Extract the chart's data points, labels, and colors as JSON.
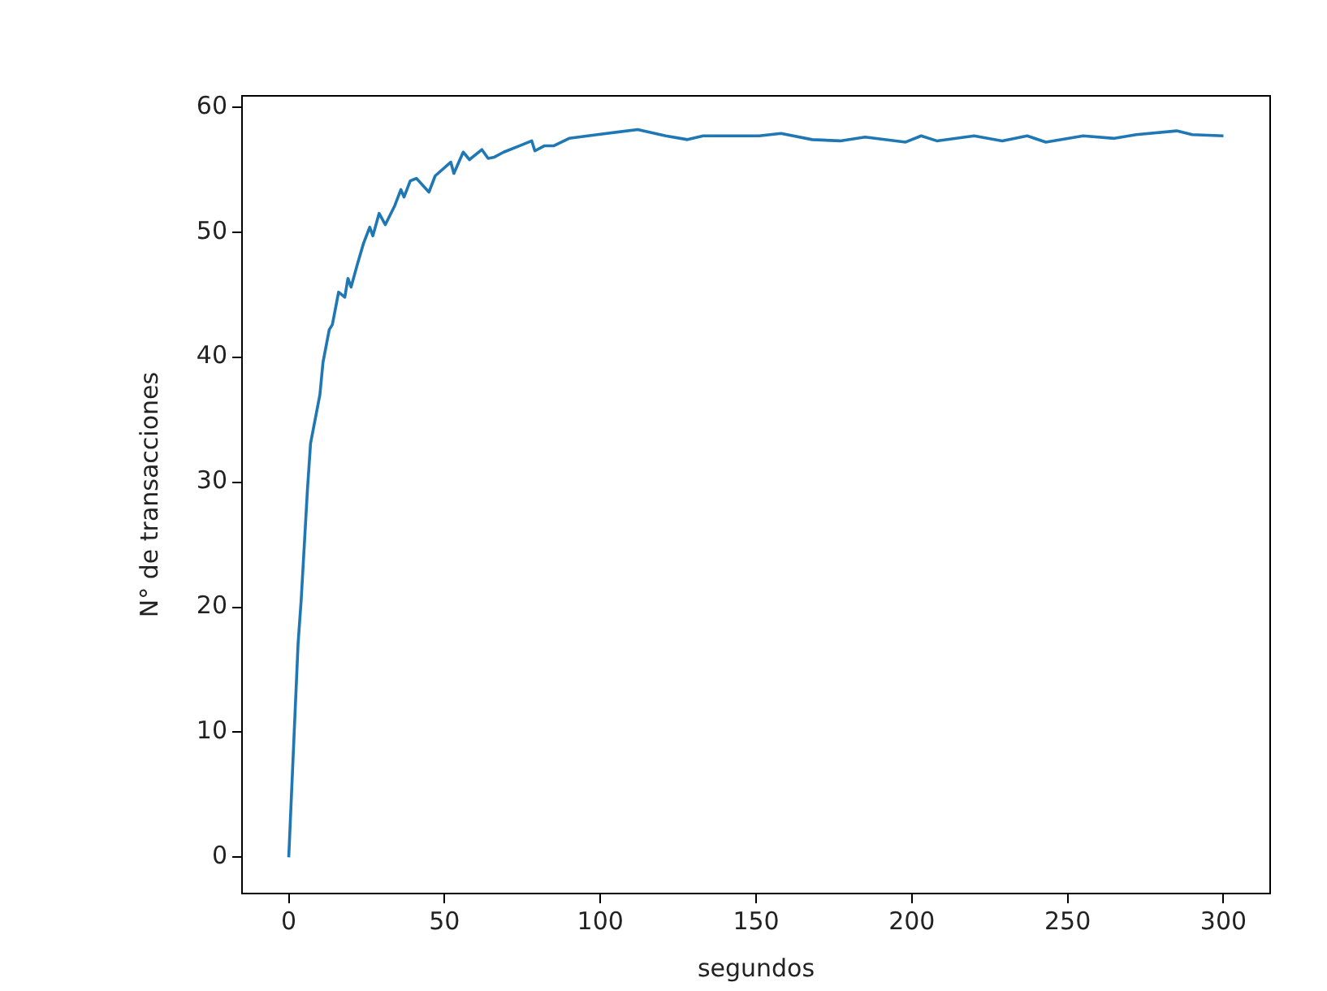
{
  "chart_data": {
    "type": "line",
    "xlabel": "segundos",
    "ylabel": "N° de transacciones",
    "xlim": [
      -15,
      315
    ],
    "ylim": [
      -2.9,
      60.9
    ],
    "xticks": [
      0,
      50,
      100,
      150,
      200,
      250,
      300
    ],
    "yticks": [
      0,
      10,
      20,
      30,
      40,
      50,
      60
    ],
    "grid": false,
    "legend": false,
    "series": [
      {
        "color": "#1f77b4",
        "x": [
          0,
          3,
          4,
          6,
          7,
          10,
          11,
          13,
          14,
          16,
          18,
          19,
          20,
          22,
          24,
          26,
          27,
          29,
          31,
          34,
          36,
          37,
          39,
          41,
          45,
          47,
          52,
          53,
          56,
          58,
          62,
          64,
          66,
          69,
          74,
          78,
          79,
          82,
          85,
          90,
          99,
          112,
          121,
          128,
          133,
          151,
          158,
          168,
          177,
          185,
          198,
          203,
          208,
          220,
          229,
          237,
          243,
          255,
          265,
          272,
          285,
          290,
          300
        ],
        "values": [
          0,
          17.1,
          20.6,
          29.4,
          33.1,
          37,
          39.6,
          42.2,
          42.6,
          45.2,
          44.8,
          46.3,
          45.6,
          47.4,
          49.1,
          50.4,
          49.7,
          51.5,
          50.6,
          52.1,
          53.4,
          52.8,
          54.1,
          54.3,
          53.2,
          54.5,
          55.6,
          54.7,
          56.4,
          55.8,
          56.6,
          55.9,
          56,
          56.4,
          56.9,
          57.3,
          56.5,
          56.9,
          56.9,
          57.5,
          57.8,
          58.2,
          57.7,
          57.4,
          57.7,
          57.7,
          57.9,
          57.4,
          57.3,
          57.6,
          57.2,
          57.7,
          57.3,
          57.7,
          57.3,
          57.7,
          57.2,
          57.7,
          57.5,
          57.8,
          58.1,
          57.8,
          57.7
        ]
      }
    ]
  }
}
